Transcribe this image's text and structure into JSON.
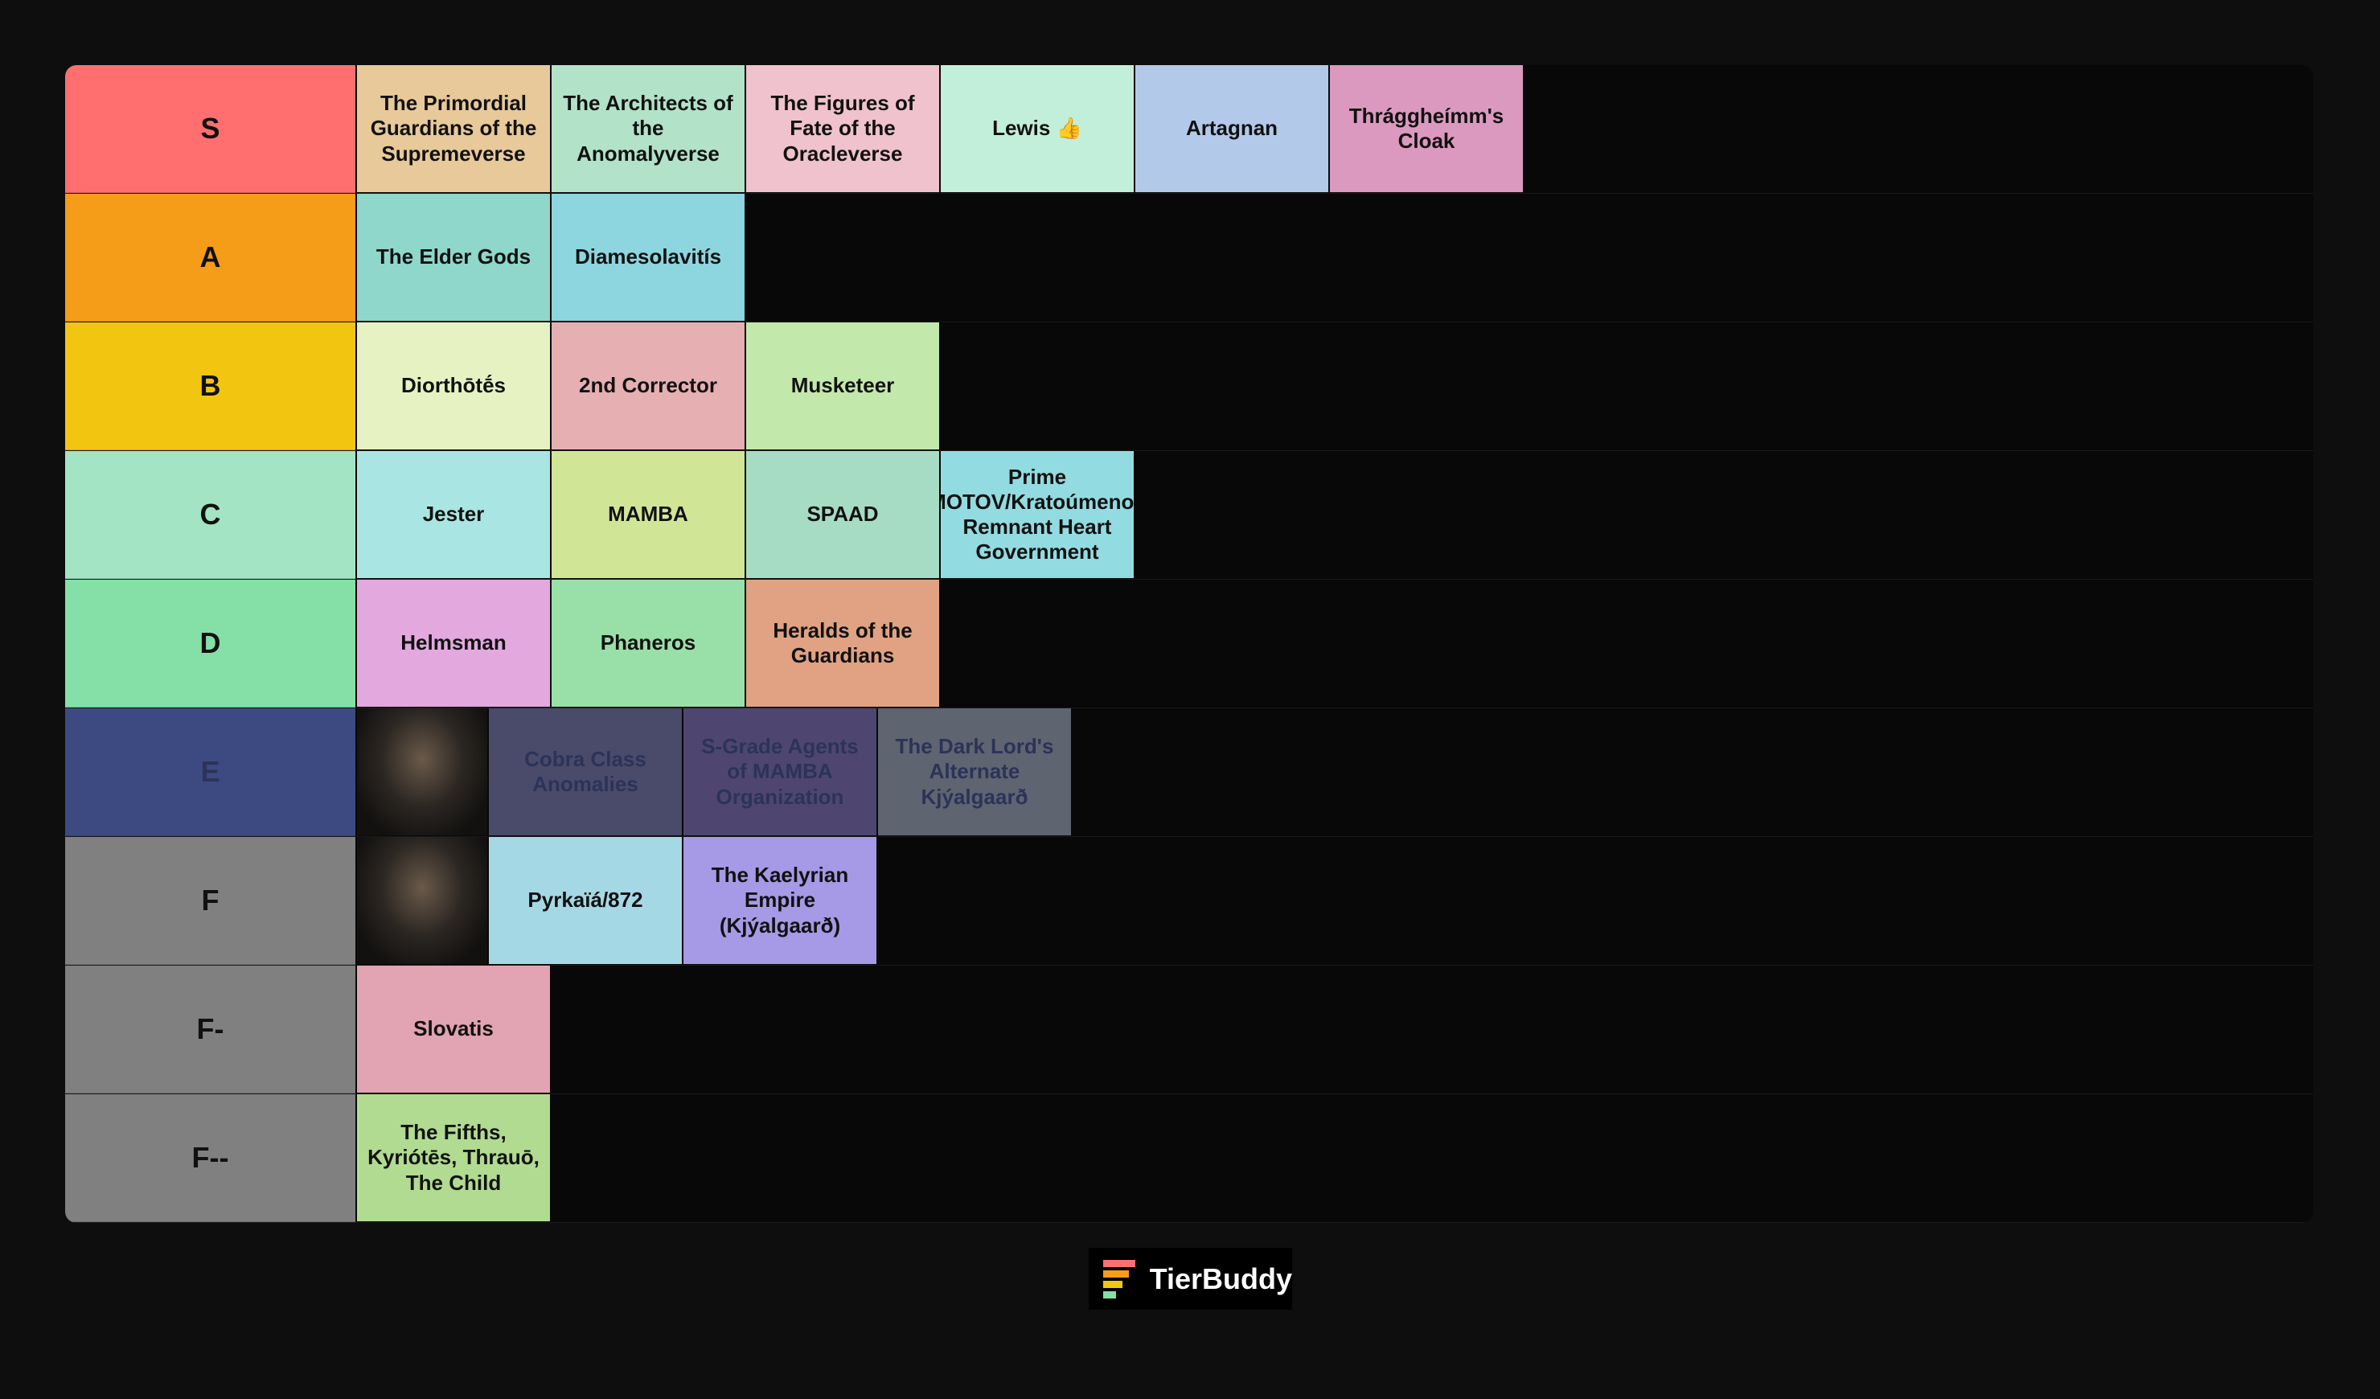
{
  "tiers": [
    {
      "label": "S",
      "color": "#ff6f6f",
      "items": [
        "The Primordial Guardians of the Supremeverse",
        "The Architects of the Anomalyverse",
        "The Figures of Fate of the Oracleverse",
        "Lewis 👍",
        "Artagnan",
        "Thrággheímm's Cloak"
      ],
      "item_colors": [
        "#e8c99a",
        "#b2e2c8",
        "#f0c2cd",
        "#c2efd9",
        "#b3c9ea",
        "#dc99bf"
      ]
    },
    {
      "label": "A",
      "color": "#f59c18",
      "items": [
        "The Elder Gods",
        "Diamesolavitís"
      ],
      "item_colors": [
        "#8fd6cb",
        "#8dd6e0"
      ]
    },
    {
      "label": "B",
      "color": "#f2c511",
      "items": [
        "Diorthōtḗs",
        "2nd Corrector",
        "Musketeer"
      ],
      "item_colors": [
        "#e6f2c2",
        "#e6b0b3",
        "#c3e8ab"
      ]
    },
    {
      "label": "C",
      "color": "#a3e4c4",
      "items": [
        "Jester",
        "MAMBA",
        "SPAAD",
        "Prime MOTOV/Kratoúmenos Remnant Heart Government"
      ],
      "item_colors": [
        "#a9e6e3",
        "#d0e696",
        "#a6dcc4",
        "#92dbe0"
      ]
    },
    {
      "label": "D",
      "color": "#84e0a6",
      "items": [
        "Helmsman",
        "Phaneros",
        "Heralds of the Guardians"
      ],
      "item_colors": [
        "#e3a9df",
        "#99e0a8",
        "#e0a283"
      ]
    },
    {
      "label": "E",
      "color": "#3d4a82",
      "text_color": "#2c3358",
      "items": [
        null,
        "Cobra Class Anomalies",
        "S-Grade Agents of MAMBA Organization",
        "The Dark Lord's Alternate Kjýalgaarð"
      ],
      "item_colors": [
        null,
        "#4a4a6a",
        "#4e4670",
        "#5e6470"
      ]
    },
    {
      "label": "F",
      "color": "#808080",
      "items": [
        null,
        "Pyrkaïá/872",
        "The Kaelyrian Empire (Kjýalgaarð)"
      ],
      "item_colors": [
        null,
        "#a5d8e5",
        "#a699e6"
      ]
    },
    {
      "label": "F-",
      "color": "#808080",
      "items": [
        "Slovatis"
      ],
      "item_colors": [
        "#e2a3b2"
      ]
    },
    {
      "label": "F--",
      "color": "#808080",
      "items": [
        "The Fifths, Kyriótēs, Thrauō, The Child"
      ],
      "item_colors": [
        "#b1db90"
      ]
    }
  ],
  "logo": "TierBuddy"
}
